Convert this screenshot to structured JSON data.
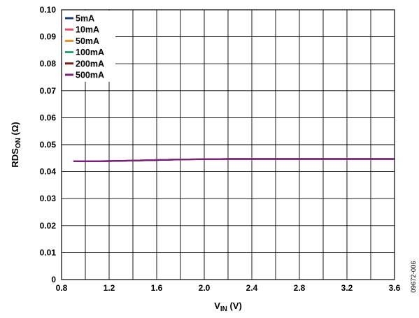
{
  "chart_data": {
    "type": "line",
    "xlabel": {
      "main": "V",
      "sub": "IN",
      "unit": " (V)"
    },
    "ylabel": {
      "main": "RDS",
      "sub": "ON",
      "unit": " (Ω)"
    },
    "xlim": [
      0.8,
      3.6
    ],
    "ylim": [
      0,
      0.1
    ],
    "x_ticks": [
      0.8,
      1.2,
      1.6,
      2.0,
      2.4,
      2.8,
      3.2,
      3.6
    ],
    "x_tick_labels": [
      "0.8",
      "1.2",
      "1.6",
      "2.0",
      "2.4",
      "2.8",
      "3.2",
      "3.6"
    ],
    "y_ticks": [
      0,
      0.01,
      0.02,
      0.03,
      0.04,
      0.05,
      0.06,
      0.07,
      0.08,
      0.09,
      0.1
    ],
    "y_tick_labels": [
      "0",
      "0.01",
      "0.02",
      "0.03",
      "0.04",
      "0.05",
      "0.06",
      "0.07",
      "0.08",
      "0.09",
      "0.10"
    ],
    "x_minor_step": 0.2,
    "grid": true,
    "legend": "top-left",
    "x": [
      0.9,
      1.0,
      1.2,
      1.4,
      1.6,
      1.8,
      2.0,
      2.2,
      2.4,
      2.6,
      2.8,
      3.0,
      3.2,
      3.4,
      3.6
    ],
    "series": [
      {
        "name": "5mA",
        "color": "#1f3a7a",
        "values": [
          0.0438,
          0.0438,
          0.0439,
          0.0441,
          0.0443,
          0.0445,
          0.0446,
          0.0447,
          0.0447,
          0.0447,
          0.0447,
          0.0447,
          0.0447,
          0.0447,
          0.0447
        ]
      },
      {
        "name": "10mA",
        "color": "#e0506a",
        "values": [
          0.0438,
          0.0438,
          0.0439,
          0.0441,
          0.0443,
          0.0445,
          0.0446,
          0.0447,
          0.0447,
          0.0447,
          0.0447,
          0.0447,
          0.0447,
          0.0447,
          0.0447
        ]
      },
      {
        "name": "50mA",
        "color": "#f28c28",
        "values": [
          0.0438,
          0.0438,
          0.0439,
          0.0441,
          0.0443,
          0.0445,
          0.0446,
          0.0447,
          0.0447,
          0.0447,
          0.0447,
          0.0447,
          0.0447,
          0.0447,
          0.0447
        ]
      },
      {
        "name": "100mA",
        "color": "#2aa36b",
        "values": [
          0.0438,
          0.0438,
          0.0439,
          0.0441,
          0.0443,
          0.0445,
          0.0446,
          0.0447,
          0.0447,
          0.0447,
          0.0447,
          0.0447,
          0.0447,
          0.0447,
          0.0447
        ]
      },
      {
        "name": "200mA",
        "color": "#7a1a1a",
        "values": [
          0.0438,
          0.0438,
          0.0439,
          0.0441,
          0.0443,
          0.0445,
          0.0446,
          0.0447,
          0.0447,
          0.0447,
          0.0447,
          0.0447,
          0.0447,
          0.0447,
          0.0447
        ]
      },
      {
        "name": "500mA",
        "color": "#7a1f7f",
        "values": [
          0.0438,
          0.0438,
          0.0439,
          0.0441,
          0.0443,
          0.0445,
          0.0446,
          0.0447,
          0.0447,
          0.0447,
          0.0447,
          0.0447,
          0.0447,
          0.0447,
          0.0447
        ]
      }
    ]
  },
  "figure_id": "09672-006"
}
